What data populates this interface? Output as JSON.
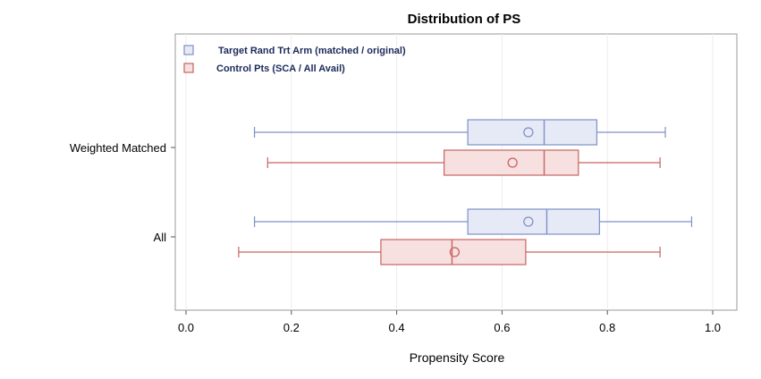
{
  "chart_data": {
    "type": "boxplot",
    "orientation": "horizontal",
    "title": "Distribution of PS",
    "xlabel": "Propensity Score",
    "ylabel": "",
    "xlim": [
      0.0,
      1.05
    ],
    "xticks": [
      0.0,
      0.2,
      0.4,
      0.6,
      0.8,
      1.0
    ],
    "xtick_labels": [
      "0.0",
      "0.2",
      "0.4",
      "0.6",
      "0.8",
      "1.0"
    ],
    "grid": true,
    "legend_position": "top-left",
    "categories": [
      "Weighted Matched",
      "All"
    ],
    "series": [
      {
        "name": "Target Rand Trt Arm (matched / original)",
        "stroke": "#8090c8",
        "fill": "#e6eaf6",
        "boxes": [
          {
            "category": "Weighted Matched",
            "min": 0.13,
            "q1": 0.535,
            "median": 0.68,
            "q3": 0.78,
            "max": 0.91,
            "mean": 0.65
          },
          {
            "category": "All",
            "min": 0.13,
            "q1": 0.535,
            "median": 0.685,
            "q3": 0.785,
            "max": 0.96,
            "mean": 0.65
          }
        ]
      },
      {
        "name": "Control Pts (SCA /  All Avail)",
        "stroke": "#c86460",
        "fill": "#f6e0e0",
        "boxes": [
          {
            "category": "Weighted Matched",
            "min": 0.155,
            "q1": 0.49,
            "median": 0.68,
            "q3": 0.745,
            "max": 0.9,
            "mean": 0.62
          },
          {
            "category": "All",
            "min": 0.1,
            "q1": 0.37,
            "median": 0.505,
            "q3": 0.645,
            "max": 0.9,
            "mean": 0.51
          }
        ]
      }
    ]
  }
}
